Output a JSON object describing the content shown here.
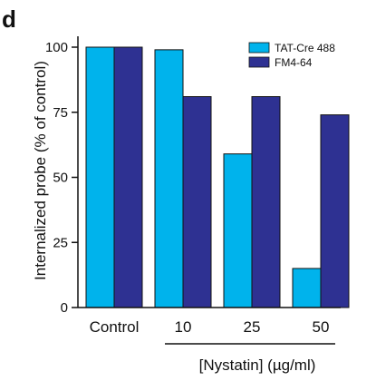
{
  "panel_letter": "d",
  "chart_data": {
    "type": "bar",
    "categories": [
      "Control",
      "10",
      "25",
      "50"
    ],
    "series": [
      {
        "name": "TAT-Cre 488",
        "values": [
          100,
          99,
          59,
          15
        ],
        "color": "#00b3ec"
      },
      {
        "name": "FM4-64",
        "values": [
          100,
          81,
          81,
          74
        ],
        "color": "#2e3192"
      }
    ],
    "ylabel": "Internalized probe (% of control)",
    "yticks": [
      0,
      25,
      50,
      75,
      100
    ],
    "ylim": [
      0,
      100
    ],
    "group_label": "[Nystatin] (µg/ml)",
    "legend_position": "top-right",
    "grid": false
  }
}
